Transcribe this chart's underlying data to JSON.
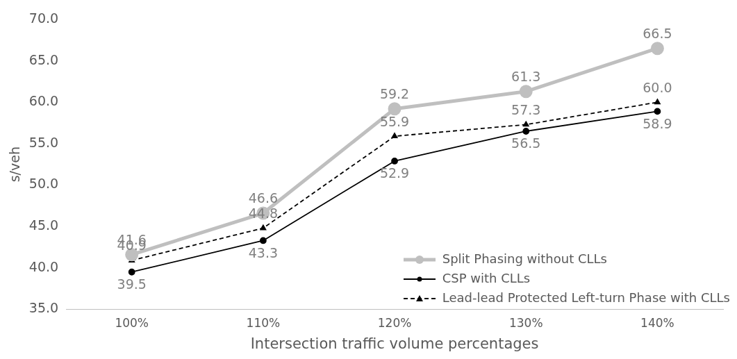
{
  "chart_data": {
    "type": "line",
    "xlabel": "Intersection traffic volume percentages",
    "ylabel": "s/veh",
    "categories": [
      "100%",
      "110%",
      "120%",
      "130%",
      "140%"
    ],
    "ylim": [
      35,
      70
    ],
    "yticks": [
      {
        "value": 35,
        "label": "35.0"
      },
      {
        "value": 40,
        "label": "40.0"
      },
      {
        "value": 45,
        "label": "45.0"
      },
      {
        "value": 50,
        "label": "50.0"
      },
      {
        "value": 55,
        "label": "55.0"
      },
      {
        "value": 60,
        "label": "60.0"
      },
      {
        "value": 65,
        "label": "65.0"
      },
      {
        "value": 70,
        "label": "70.0"
      }
    ],
    "grid": false,
    "legend": "bottom right",
    "series": [
      {
        "name": "Split Phasing without CLLs",
        "color": "#bfbfbf",
        "marker": "circle",
        "line_style": "solid",
        "values": [
          41.6,
          46.6,
          59.2,
          61.3,
          66.5
        ],
        "value_labels": [
          "41.6",
          "46.6",
          "59.2",
          "61.3",
          "66.5"
        ]
      },
      {
        "name": "CSP with CLLs",
        "color": "#000000",
        "marker": "circle",
        "line_style": "solid",
        "values": [
          39.5,
          43.3,
          52.9,
          56.5,
          58.9
        ],
        "value_labels": [
          "39.5",
          "43.3",
          "52.9",
          "56.5",
          "58.9"
        ]
      },
      {
        "name": "Lead-lead Protected Left-turn Phase with CLLs",
        "color": "#000000",
        "marker": "triangle",
        "line_style": "dashed",
        "values": [
          40.9,
          44.8,
          55.9,
          57.3,
          60.0
        ],
        "value_labels": [
          "40.9",
          "44.8",
          "55.9",
          "57.3",
          "60.0"
        ]
      }
    ]
  }
}
